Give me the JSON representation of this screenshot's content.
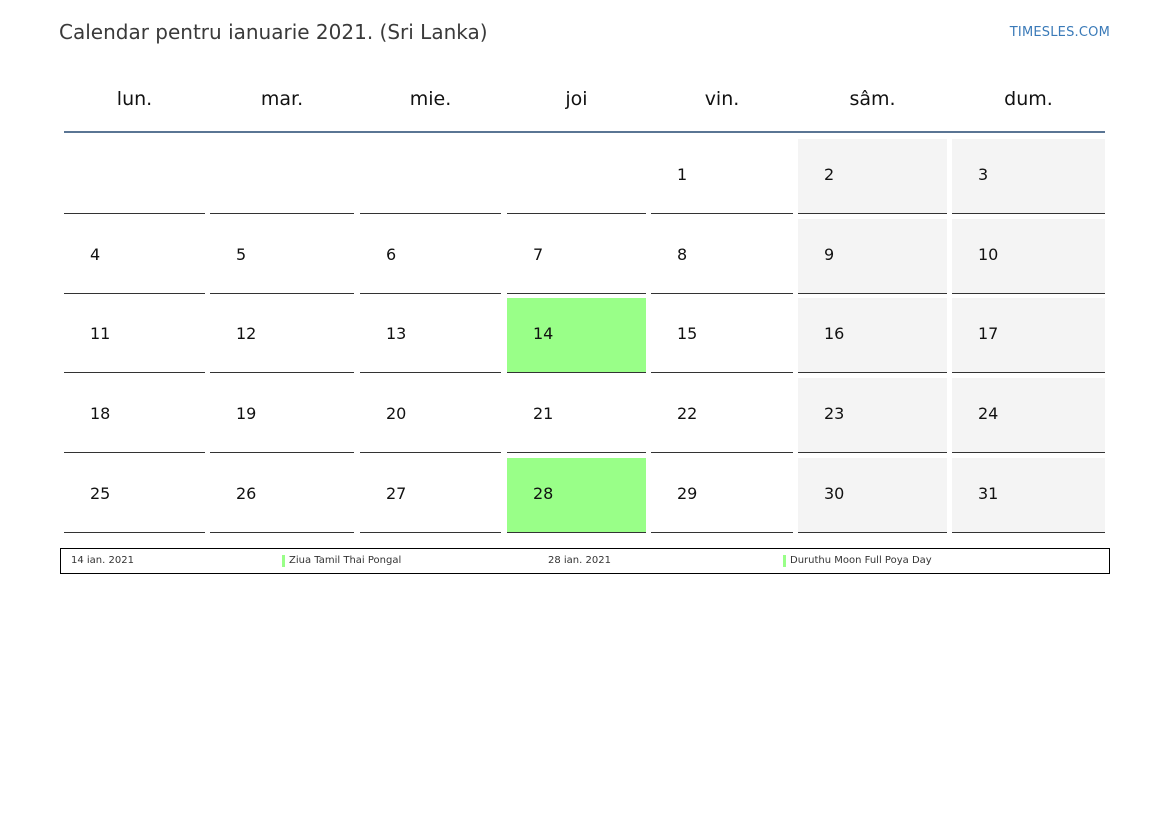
{
  "title": "Calendar pentru ianuarie 2021. (Sri Lanka)",
  "site": "TIMESLES.COM",
  "colors": {
    "holiday": "#99ff88",
    "weekend": "#f4f4f4",
    "header_rule": "#5a7594",
    "link": "#3a7ab8"
  },
  "weekdays": [
    "lun.",
    "mar.",
    "mie.",
    "joi",
    "vin.",
    "sâm.",
    "dum."
  ],
  "weeks": [
    [
      "",
      "",
      "",
      "",
      "1",
      "2",
      "3"
    ],
    [
      "4",
      "5",
      "6",
      "7",
      "8",
      "9",
      "10"
    ],
    [
      "11",
      "12",
      "13",
      "14",
      "15",
      "16",
      "17"
    ],
    [
      "18",
      "19",
      "20",
      "21",
      "22",
      "23",
      "24"
    ],
    [
      "25",
      "26",
      "27",
      "28",
      "29",
      "30",
      "31"
    ]
  ],
  "holiday_days": [
    "14",
    "28"
  ],
  "legend": [
    {
      "date": "14 ian. 2021",
      "name": "Ziua Tamil Thai Pongal"
    },
    {
      "date": "28 ian. 2021",
      "name": "Duruthu Moon Full Poya Day"
    }
  ]
}
